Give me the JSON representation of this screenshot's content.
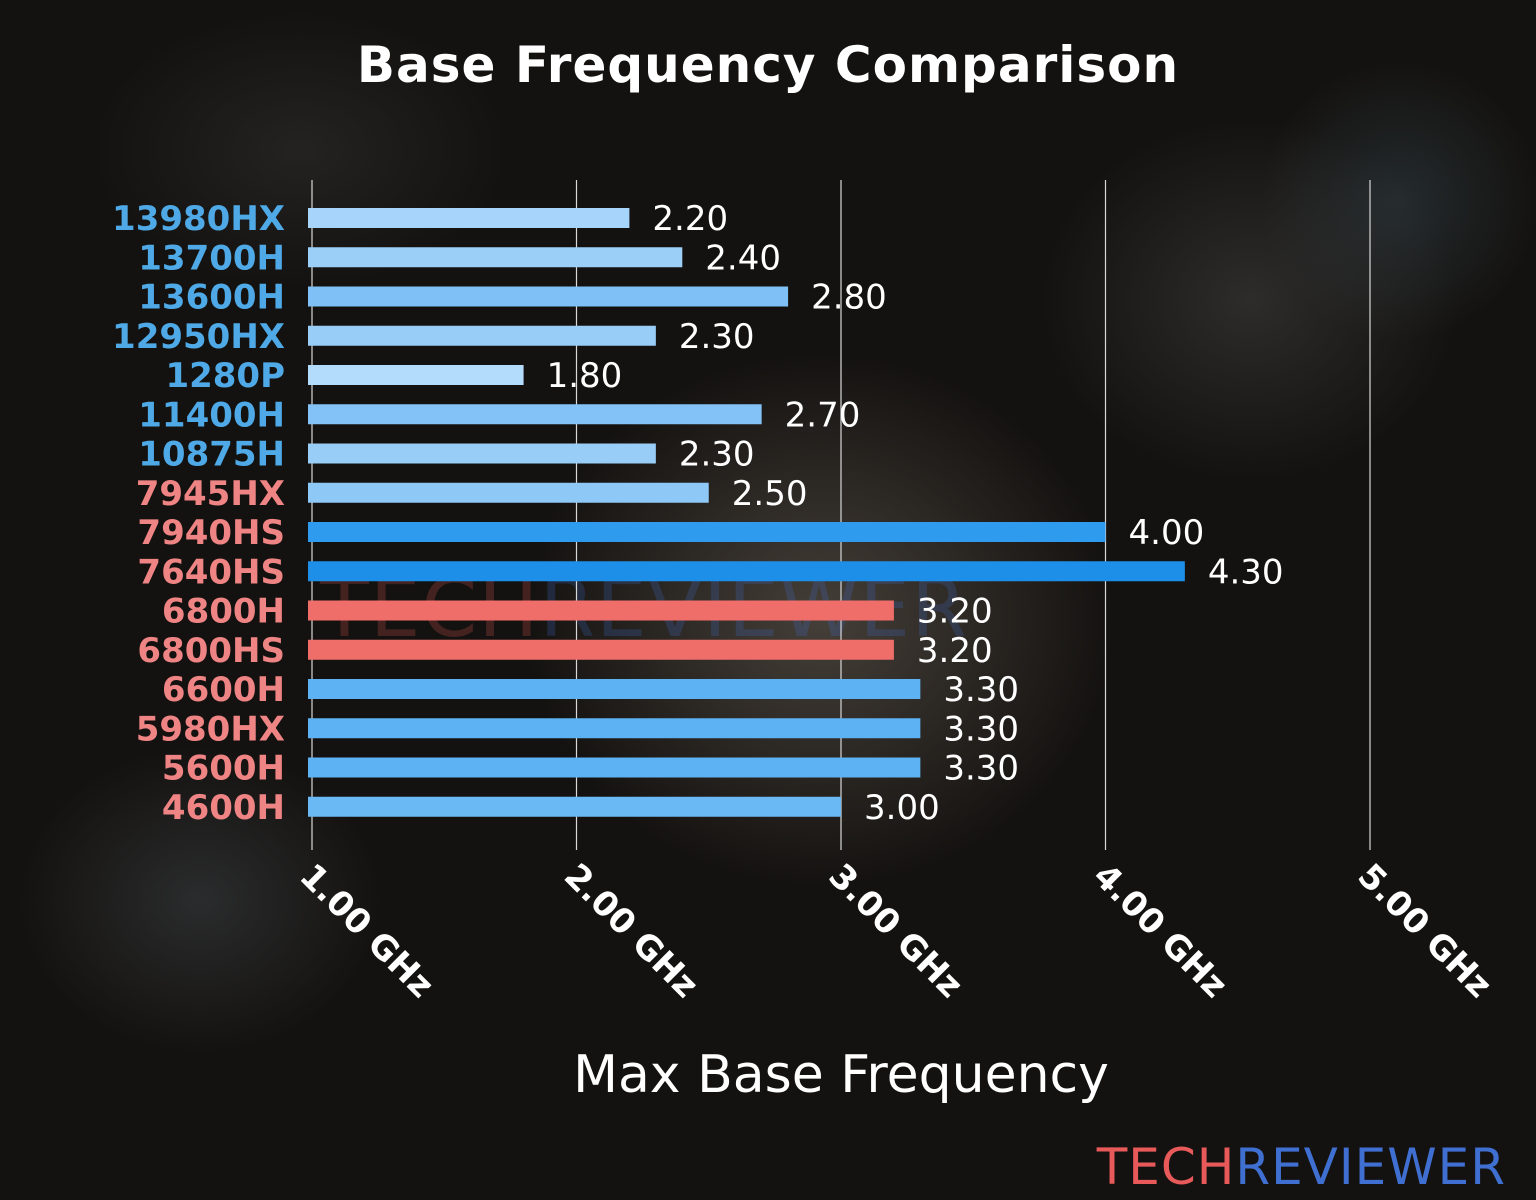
{
  "chart_data": {
    "type": "bar",
    "orientation": "horizontal",
    "title": "Base Frequency Comparison",
    "xlabel": "Max Base Frequency",
    "ylabel": "",
    "xlim": [
      1.0,
      5.0
    ],
    "xticks": [
      "1.00 GHz",
      "2.00 GHz",
      "3.00 GHz",
      "4.00 GHz",
      "5.00 GHz"
    ],
    "grid": "vertical",
    "categories": [
      "13980HX",
      "13700H",
      "13600H",
      "12950HX",
      "1280P",
      "11400H",
      "10875H",
      "7945HX",
      "7940HS",
      "7640HS",
      "6800H",
      "6800HS",
      "6600H",
      "5980HX",
      "5600H",
      "4600H"
    ],
    "values": [
      2.2,
      2.4,
      2.8,
      2.3,
      1.8,
      2.7,
      2.3,
      2.5,
      4.0,
      4.3,
      3.2,
      3.2,
      3.3,
      3.3,
      3.3,
      3.0
    ],
    "data_labels": [
      "2.20",
      "2.40",
      "2.80",
      "2.30",
      "1.80",
      "2.70",
      "2.30",
      "2.50",
      "4.00",
      "4.30",
      "3.20",
      "3.20",
      "3.30",
      "3.30",
      "3.30",
      "3.00"
    ],
    "label_colors": [
      "#4ea9e6",
      "#4ea9e6",
      "#4ea9e6",
      "#4ea9e6",
      "#4ea9e6",
      "#4ea9e6",
      "#4ea9e6",
      "#ef8484",
      "#ef8484",
      "#ef8484",
      "#ef8484",
      "#ef8484",
      "#ef8484",
      "#ef8484",
      "#ef8484",
      "#ef8484"
    ],
    "bar_colors": [
      "#a6d4fa",
      "#9bcff8",
      "#7fc0f6",
      "#98cdf8",
      "#b3dbfb",
      "#83c2f6",
      "#98cdf8",
      "#8dc8f7",
      "#2f9bef",
      "#1e8fe8",
      "#f06e6a",
      "#f06e6a",
      "#5cb2f3",
      "#5cb2f3",
      "#5cb2f3",
      "#6bb9f4"
    ]
  },
  "branding": {
    "logo_part1": "TECH",
    "logo_part2": "REVIEWER",
    "color1": "#e85a5a",
    "color2": "#3f6fd0"
  }
}
